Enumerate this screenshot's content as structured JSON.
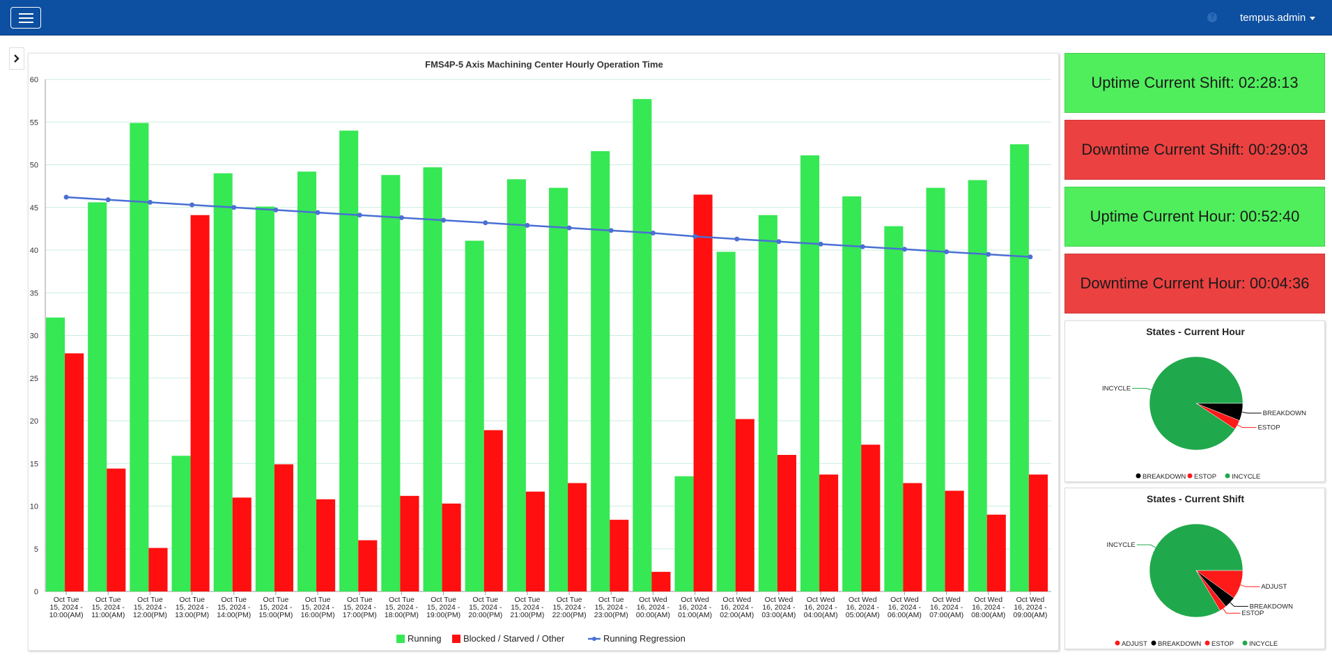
{
  "user": {
    "name": "tempus.admin"
  },
  "icons": {
    "menu": "hamburger-icon",
    "help": "help-icon",
    "toggle": "chevron-right-icon"
  },
  "colors": {
    "running": "#36e854",
    "blocked": "#ff0f0f",
    "regression": "#4a6fd4",
    "uptime_bg": "#50ee5c",
    "downtime_bg": "#ec4141",
    "incycle": "#20a84c",
    "estop": "#ff1a1a",
    "breakdown": "#000000",
    "adjust": "#ff1a1a"
  },
  "stats": {
    "uptime_shift": "Uptime Current Shift: 02:28:13",
    "downtime_shift": "Downtime Current Shift: 00:29:03",
    "uptime_hour": "Uptime Current Hour: 00:52:40",
    "downtime_hour": "Downtime Current Hour: 00:04:36"
  },
  "chart_data": [
    {
      "type": "bar",
      "title": "FMS4P-5 Axis Machining Center Hourly Operation Time",
      "ylim": [
        0,
        60
      ],
      "yticks": [
        0,
        5,
        10,
        15,
        20,
        25,
        30,
        35,
        40,
        45,
        50,
        55,
        60
      ],
      "grid": true,
      "legend_position": "bottom",
      "categories": [
        [
          "Oct Tue",
          "15, 2024 -",
          "10:00(AM)"
        ],
        [
          "Oct Tue",
          "15, 2024 -",
          "11:00(AM)"
        ],
        [
          "Oct Tue",
          "15, 2024 -",
          "12:00(PM)"
        ],
        [
          "Oct Tue",
          "15, 2024 -",
          "13:00(PM)"
        ],
        [
          "Oct Tue",
          "15, 2024 -",
          "14:00(PM)"
        ],
        [
          "Oct Tue",
          "15, 2024 -",
          "15:00(PM)"
        ],
        [
          "Oct Tue",
          "15, 2024 -",
          "16:00(PM)"
        ],
        [
          "Oct Tue",
          "15, 2024 -",
          "17:00(PM)"
        ],
        [
          "Oct Tue",
          "15, 2024 -",
          "18:00(PM)"
        ],
        [
          "Oct Tue",
          "15, 2024 -",
          "19:00(PM)"
        ],
        [
          "Oct Tue",
          "15, 2024 -",
          "20:00(PM)"
        ],
        [
          "Oct Tue",
          "15, 2024 -",
          "21:00(PM)"
        ],
        [
          "Oct Tue",
          "15, 2024 -",
          "22:00(PM)"
        ],
        [
          "Oct Tue",
          "15, 2024 -",
          "23:00(PM)"
        ],
        [
          "Oct Wed",
          "16, 2024 -",
          "00:00(AM)"
        ],
        [
          "Oct Wed",
          "16, 2024 -",
          "01:00(AM)"
        ],
        [
          "Oct Wed",
          "16, 2024 -",
          "02:00(AM)"
        ],
        [
          "Oct Wed",
          "16, 2024 -",
          "03:00(AM)"
        ],
        [
          "Oct Wed",
          "16, 2024 -",
          "04:00(AM)"
        ],
        [
          "Oct Wed",
          "16, 2024 -",
          "05:00(AM)"
        ],
        [
          "Oct Wed",
          "16, 2024 -",
          "06:00(AM)"
        ],
        [
          "Oct Wed",
          "16, 2024 -",
          "07:00(AM)"
        ],
        [
          "Oct Wed",
          "16, 2024 -",
          "08:00(AM)"
        ],
        [
          "Oct Wed",
          "16, 2024 -",
          "09:00(AM)"
        ]
      ],
      "series": [
        {
          "name": "Running",
          "kind": "bar",
          "values": [
            32.1,
            45.6,
            54.9,
            15.9,
            49.0,
            45.1,
            49.2,
            54.0,
            48.8,
            49.7,
            41.1,
            48.3,
            47.3,
            51.6,
            57.7,
            13.5,
            39.8,
            44.1,
            51.1,
            46.3,
            42.8,
            47.3,
            48.2,
            52.4
          ]
        },
        {
          "name": "Blocked / Starved / Other",
          "kind": "bar",
          "values": [
            27.9,
            14.4,
            5.1,
            44.1,
            11.0,
            14.9,
            10.8,
            6.0,
            11.2,
            10.3,
            18.9,
            11.7,
            12.7,
            8.4,
            2.3,
            46.5,
            20.2,
            16.0,
            13.7,
            17.2,
            12.7,
            11.8,
            9.0,
            13.7
          ]
        },
        {
          "name": "Running Regression",
          "kind": "line",
          "values": [
            46.2,
            45.9,
            45.6,
            45.3,
            45.0,
            44.7,
            44.4,
            44.1,
            43.8,
            43.5,
            43.2,
            42.9,
            42.6,
            42.3,
            42.0,
            41.6,
            41.3,
            41.0,
            40.7,
            40.4,
            40.1,
            39.8,
            39.5,
            39.2
          ]
        }
      ]
    },
    {
      "type": "pie",
      "title": "States - Current Hour",
      "slices": [
        {
          "label": "INCYCLE",
          "value": 0.907
        },
        {
          "label": "BREAKDOWN",
          "value": 0.06
        },
        {
          "label": "ESTOP",
          "value": 0.033
        }
      ],
      "legend": [
        "BREAKDOWN",
        "ESTOP",
        "INCYCLE"
      ],
      "legend_position": "bottom"
    },
    {
      "type": "pie",
      "title": "States - Current Shift",
      "slices": [
        {
          "label": "INCYCLE",
          "value": 0.836
        },
        {
          "label": "ADJUST",
          "value": 0.1
        },
        {
          "label": "BREAKDOWN",
          "value": 0.04
        },
        {
          "label": "ESTOP",
          "value": 0.024
        }
      ],
      "legend": [
        "ADJUST",
        "BREAKDOWN",
        "ESTOP",
        "INCYCLE"
      ],
      "legend_position": "bottom"
    }
  ]
}
